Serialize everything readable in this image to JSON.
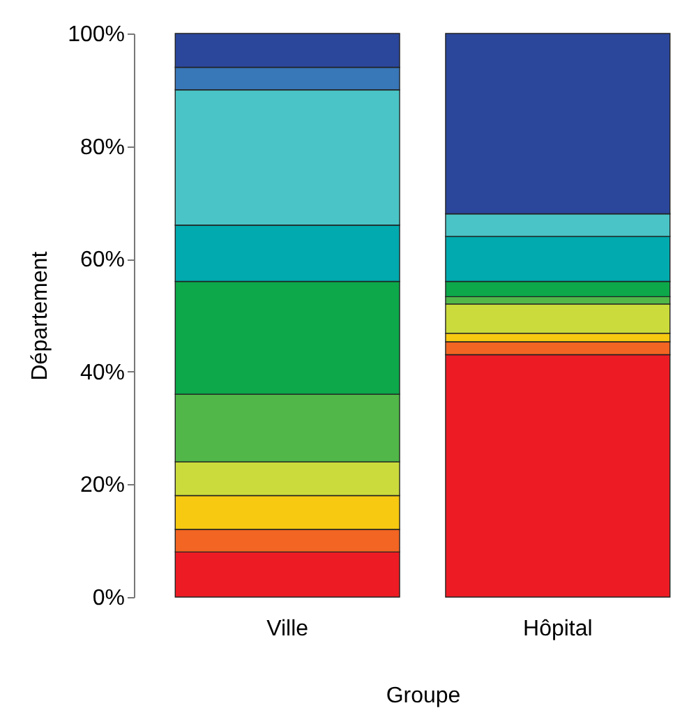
{
  "chart_data": {
    "type": "bar",
    "stacked": true,
    "xlabel": "Groupe",
    "ylabel": "Département",
    "categories": [
      "Ville",
      "Hôpital"
    ],
    "ylim": [
      0,
      100
    ],
    "yticks": [
      {
        "value": 0,
        "label": "0%"
      },
      {
        "value": 20,
        "label": "20%"
      },
      {
        "value": 40,
        "label": "40%"
      },
      {
        "value": 60,
        "label": "60%"
      },
      {
        "value": 80,
        "label": "80%"
      },
      {
        "value": 100,
        "label": "100%"
      }
    ],
    "series": [
      {
        "color": "#ed1c24",
        "values": [
          8,
          43
        ]
      },
      {
        "color": "#f26522",
        "values": [
          4,
          2.3
        ]
      },
      {
        "color": "#f7c910",
        "values": [
          6,
          1.5
        ]
      },
      {
        "color": "#cbdb3b",
        "values": [
          6,
          5.2
        ]
      },
      {
        "color": "#50b748",
        "values": [
          12,
          1.3
        ]
      },
      {
        "color": "#0ca84a",
        "values": [
          20,
          2.7
        ]
      },
      {
        "color": "#00aaae",
        "values": [
          10,
          8
        ]
      },
      {
        "color": "#4ac4c6",
        "values": [
          24,
          4
        ]
      },
      {
        "color": "#3877b8",
        "values": [
          4,
          0
        ]
      },
      {
        "color": "#2b479c",
        "values": [
          6,
          32
        ]
      }
    ]
  }
}
